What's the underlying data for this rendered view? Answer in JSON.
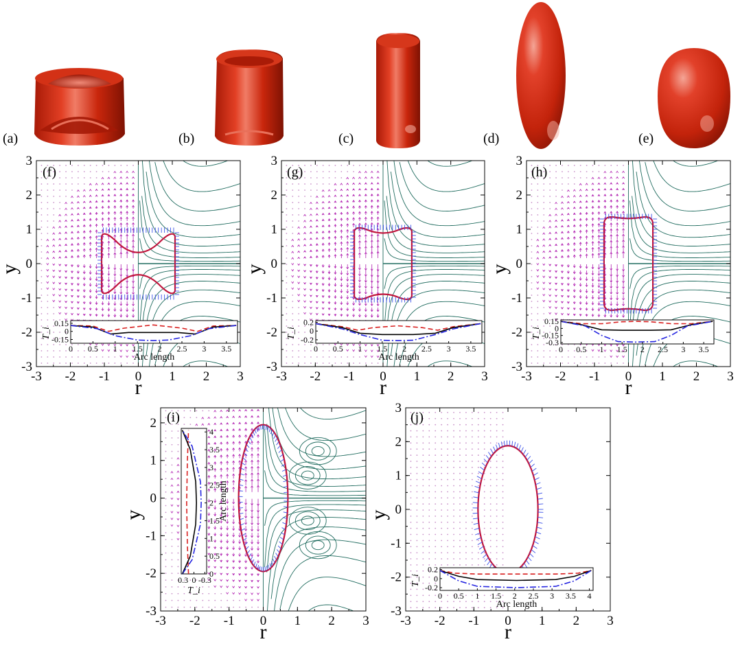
{
  "colors": {
    "shape_fill": "#c9260c",
    "shape_dark": "#8e1606",
    "shape_highlight": "#f4a596",
    "streamline": "#1f6b5e",
    "velocity_vector": "#b020b0",
    "force_vector": "#3a50e8",
    "interface": "#c0143c",
    "tension_total": "#000000",
    "tension_red": "#d81e1e",
    "tension_blue": "#2424e0"
  },
  "shapes": [
    {
      "tag": "(a)",
      "kind": "biconcave-cylinder",
      "icon": "concave-cylinder-icon"
    },
    {
      "tag": "(b)",
      "kind": "cylinder-slight-dimple",
      "icon": "dimpled-cylinder-icon"
    },
    {
      "tag": "(c)",
      "kind": "rounded-cylinder",
      "icon": "rounded-cylinder-icon"
    },
    {
      "tag": "(d)",
      "kind": "prolate-spheroid",
      "icon": "prolate-spheroid-icon"
    },
    {
      "tag": "(e)",
      "kind": "egg",
      "icon": "egg-icon"
    }
  ],
  "axes": {
    "xlabel": "r",
    "ylabel": "y",
    "xticks": [
      "-3",
      "-2",
      "-1",
      "0",
      "1",
      "2",
      "3"
    ],
    "yticks": [
      "-3",
      "-2",
      "-1",
      "0",
      "1",
      "2",
      "3"
    ]
  },
  "chart_data": [
    {
      "type": "line",
      "panel": "(f)",
      "xlim": [
        -3,
        3
      ],
      "ylim": [
        -3,
        3
      ],
      "interface_kind": "concave",
      "has_streamlines": true,
      "inset": {
        "xlabel": "Arc length",
        "ylabel": "T_i",
        "xticks": [
          "0",
          "0.5",
          "1",
          "1.5",
          "2",
          "2.5",
          "3",
          "3.5"
        ],
        "yticks": [
          "0.15",
          "0",
          "-0.15"
        ],
        "xrange": [
          0,
          3.75
        ],
        "yrange": [
          -0.22,
          0.2
        ],
        "red": [
          [
            0,
            0.11
          ],
          [
            0.5,
            0.1
          ],
          [
            0.85,
            0.0
          ],
          [
            1.2,
            0.06
          ],
          [
            1.85,
            0.12
          ],
          [
            2.5,
            0.06
          ],
          [
            2.85,
            0.0
          ],
          [
            3.2,
            0.1
          ],
          [
            3.72,
            0.11
          ]
        ],
        "black": [
          [
            0,
            0.11
          ],
          [
            0.5,
            0.08
          ],
          [
            0.9,
            -0.05
          ],
          [
            1.3,
            -0.02
          ],
          [
            1.85,
            -0.02
          ],
          [
            2.4,
            -0.02
          ],
          [
            2.8,
            -0.05
          ],
          [
            3.2,
            0.08
          ],
          [
            3.72,
            0.11
          ]
        ],
        "blue": [
          [
            0,
            0.11
          ],
          [
            0.6,
            0.05
          ],
          [
            1.0,
            -0.08
          ],
          [
            1.5,
            -0.16
          ],
          [
            1.85,
            -0.17
          ],
          [
            2.2,
            -0.16
          ],
          [
            2.7,
            -0.08
          ],
          [
            3.1,
            0.05
          ],
          [
            3.72,
            0.11
          ]
        ]
      }
    },
    {
      "type": "line",
      "panel": "(g)",
      "xlim": [
        -3,
        3
      ],
      "ylim": [
        -3,
        3
      ],
      "interface_kind": "dimpled",
      "has_streamlines": true,
      "inset": {
        "xlabel": "Arc length",
        "ylabel": "T_i",
        "xticks": [
          "0",
          "0.5",
          "1",
          "1.5",
          "2",
          "2.5",
          "3",
          "3.5"
        ],
        "yticks": [
          "0.2",
          "0",
          "-0.2"
        ],
        "xrange": [
          0,
          3.75
        ],
        "yrange": [
          -0.28,
          0.24
        ],
        "red": [
          [
            0,
            0.17
          ],
          [
            0.6,
            0.1
          ],
          [
            0.95,
            0.02
          ],
          [
            1.3,
            0.08
          ],
          [
            1.85,
            0.12
          ],
          [
            2.4,
            0.08
          ],
          [
            2.75,
            0.02
          ],
          [
            3.1,
            0.1
          ],
          [
            3.72,
            0.17
          ]
        ],
        "black": [
          [
            0,
            0.17
          ],
          [
            0.6,
            0.08
          ],
          [
            1.0,
            -0.05
          ],
          [
            1.5,
            -0.08
          ],
          [
            1.85,
            -0.08
          ],
          [
            2.2,
            -0.08
          ],
          [
            2.7,
            -0.05
          ],
          [
            3.1,
            0.08
          ],
          [
            3.72,
            0.17
          ]
        ],
        "blue": [
          [
            0,
            0.17
          ],
          [
            0.6,
            0.05
          ],
          [
            1.0,
            -0.08
          ],
          [
            1.5,
            -0.21
          ],
          [
            1.85,
            -0.22
          ],
          [
            2.2,
            -0.21
          ],
          [
            2.7,
            -0.08
          ],
          [
            3.1,
            0.05
          ],
          [
            3.72,
            0.17
          ]
        ]
      }
    },
    {
      "type": "line",
      "panel": "(h)",
      "xlim": [
        -3,
        3
      ],
      "ylim": [
        -3,
        3
      ],
      "interface_kind": "rounded-rect",
      "has_streamlines": true,
      "inset": {
        "xlabel": "",
        "ylabel": "T_i",
        "xticks": [
          "0",
          "0.5",
          "1",
          "1.5",
          "2",
          "2.5",
          "3",
          "3.5"
        ],
        "yticks": [
          "0.15",
          "0",
          "-0.15",
          "-0.3"
        ],
        "xrange": [
          0,
          3.75
        ],
        "yrange": [
          -0.33,
          0.18
        ],
        "red": [
          [
            0,
            0.15
          ],
          [
            0.5,
            0.1
          ],
          [
            1.0,
            0.1
          ],
          [
            1.5,
            0.14
          ],
          [
            1.85,
            0.15
          ],
          [
            2.2,
            0.14
          ],
          [
            2.7,
            0.1
          ],
          [
            3.2,
            0.1
          ],
          [
            3.72,
            0.15
          ]
        ],
        "black": [
          [
            0,
            0.15
          ],
          [
            0.5,
            0.08
          ],
          [
            1.0,
            -0.03
          ],
          [
            1.5,
            -0.04
          ],
          [
            1.85,
            -0.04
          ],
          [
            2.2,
            -0.04
          ],
          [
            2.7,
            -0.03
          ],
          [
            3.2,
            0.08
          ],
          [
            3.72,
            0.15
          ]
        ],
        "blue": [
          [
            0,
            0.15
          ],
          [
            0.6,
            0.05
          ],
          [
            1.0,
            -0.15
          ],
          [
            1.4,
            -0.28
          ],
          [
            1.85,
            -0.29
          ],
          [
            2.3,
            -0.28
          ],
          [
            2.7,
            -0.15
          ],
          [
            3.1,
            0.05
          ],
          [
            3.72,
            0.15
          ]
        ]
      }
    },
    {
      "type": "line",
      "panel": "(i)",
      "xlim": [
        -3,
        3
      ],
      "ylim": [
        -3,
        2.4
      ],
      "interface_kind": "prolate",
      "has_streamlines": true,
      "inset": {
        "orientation": "vertical",
        "xlabel": "T_i",
        "ylabel": "Arc length",
        "xticks": [
          "0.3",
          "0",
          "-0.3"
        ],
        "yticks": [
          "0",
          "0.5",
          "1",
          "1.5",
          "2",
          "2.5",
          "3",
          "3.5",
          "4"
        ],
        "xrange": [
          0.35,
          -0.35
        ],
        "yrange": [
          0,
          4.1
        ],
        "red": [
          [
            0.15,
            0
          ],
          [
            0.18,
            0.8
          ],
          [
            0.2,
            2.0
          ],
          [
            0.18,
            3.2
          ],
          [
            0.15,
            4.05
          ]
        ],
        "black": [
          [
            0.32,
            0
          ],
          [
            0.1,
            0.5
          ],
          [
            -0.05,
            1.4
          ],
          [
            -0.07,
            2.0
          ],
          [
            -0.05,
            2.6
          ],
          [
            0.1,
            3.5
          ],
          [
            0.32,
            4.05
          ]
        ],
        "blue": [
          [
            0.32,
            0
          ],
          [
            0.05,
            0.4
          ],
          [
            -0.18,
            1.4
          ],
          [
            -0.2,
            2.0
          ],
          [
            -0.18,
            2.6
          ],
          [
            0.05,
            3.6
          ],
          [
            0.32,
            4.05
          ]
        ]
      }
    },
    {
      "type": "line",
      "panel": "(j)",
      "xlim": [
        -3,
        3
      ],
      "ylim": [
        -3,
        3
      ],
      "interface_kind": "ellipse",
      "has_streamlines": false,
      "inset": {
        "xlabel": "Arc length",
        "ylabel": "T_i",
        "xticks": [
          "0",
          "0.5",
          "1",
          "1.5",
          "2",
          "2.5",
          "3",
          "3.5",
          "4"
        ],
        "yticks": [
          "0.2",
          "0",
          "-0.2"
        ],
        "xrange": [
          0,
          4.1
        ],
        "yrange": [
          -0.26,
          0.24
        ],
        "red": [
          [
            0,
            0.18
          ],
          [
            0.4,
            0.12
          ],
          [
            1.0,
            0.1
          ],
          [
            2.05,
            0.1
          ],
          [
            3.1,
            0.1
          ],
          [
            3.7,
            0.12
          ],
          [
            4.05,
            0.18
          ]
        ],
        "black": [
          [
            0,
            0.18
          ],
          [
            0.5,
            0.05
          ],
          [
            1.0,
            -0.02
          ],
          [
            2.05,
            -0.04
          ],
          [
            3.1,
            -0.02
          ],
          [
            3.6,
            0.05
          ],
          [
            4.05,
            0.18
          ]
        ],
        "blue": [
          [
            0,
            0.18
          ],
          [
            0.5,
            -0.05
          ],
          [
            1.0,
            -0.17
          ],
          [
            2.05,
            -0.2
          ],
          [
            3.1,
            -0.17
          ],
          [
            3.6,
            -0.05
          ],
          [
            4.05,
            0.18
          ]
        ]
      }
    }
  ]
}
